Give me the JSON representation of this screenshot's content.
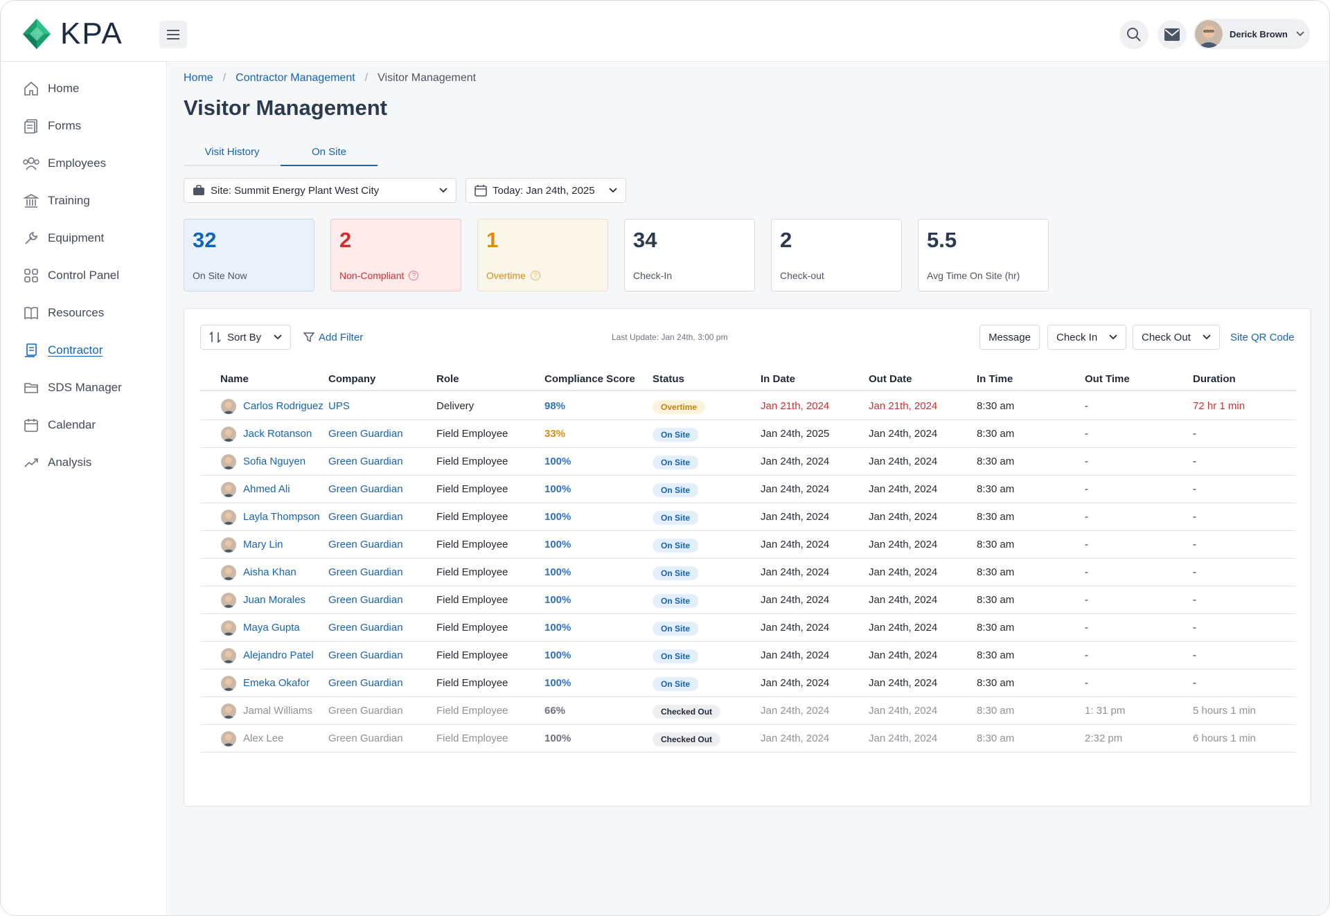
{
  "app": {
    "logo_text": "KPA"
  },
  "user": {
    "name": "Derick Brown"
  },
  "colors": {
    "accent": "#1464b4",
    "danger": "#d12f2f",
    "warning": "#e08a0b",
    "logo_green": "#19a06b"
  },
  "sidebar": {
    "items": [
      {
        "label": "Home",
        "icon": "home-icon"
      },
      {
        "label": "Forms",
        "icon": "forms-icon"
      },
      {
        "label": "Employees",
        "icon": "employees-icon"
      },
      {
        "label": "Training",
        "icon": "training-icon"
      },
      {
        "label": "Equipment",
        "icon": "wrench-icon"
      },
      {
        "label": "Control Panel",
        "icon": "grid-icon"
      },
      {
        "label": "Resources",
        "icon": "book-icon"
      },
      {
        "label": "Contractor",
        "icon": "contractor-icon",
        "active": true
      },
      {
        "label": "SDS Manager",
        "icon": "folder-icon"
      },
      {
        "label": "Calendar",
        "icon": "calendar-icon"
      },
      {
        "label": "Analysis",
        "icon": "trend-icon"
      }
    ]
  },
  "breadcrumb": {
    "home": "Home",
    "parent": "Contractor Management",
    "current": "Visitor Management",
    "sep": "/"
  },
  "page": {
    "title": "Visitor Management"
  },
  "tabs": [
    {
      "label": "Visit History"
    },
    {
      "label": "On Site",
      "active": true
    }
  ],
  "filters": {
    "site": "Site: Summit Energy Plant West City",
    "date": "Today: Jan 24th, 2025"
  },
  "stats": [
    {
      "value": "32",
      "label": "On Site Now"
    },
    {
      "value": "2",
      "label": "Non-Compliant"
    },
    {
      "value": "1",
      "label": "Overtime"
    },
    {
      "value": "34",
      "label": "Check-In"
    },
    {
      "value": "2",
      "label": "Check-out"
    },
    {
      "value": "5.5",
      "label": "Avg Time On Site (hr)"
    }
  ],
  "help_glyph": "?",
  "toolbar": {
    "sort_label": "Sort By",
    "filter_label": "Add Filter",
    "last_update": "Last Update: Jan 24th, 3:00 pm",
    "message_label": "Message",
    "checkin_label": "Check In",
    "checkout_label": "Check Out",
    "qr_label": "Site QR Code"
  },
  "table": {
    "columns": [
      "Name",
      "Company",
      "Role",
      "Compliance Score",
      "Status",
      "In Date",
      "Out Date",
      "In Time",
      "Out Time",
      "Duration"
    ],
    "rows": [
      [
        "Carlos Rodriguez",
        "UPS",
        "Delivery",
        "98%",
        "Overtime",
        "Jan 21th, 2024",
        "Jan 21th, 2024",
        "8:30 am",
        "-",
        "72 hr 1 min"
      ],
      [
        "Jack Rotanson",
        "Green Guardian",
        "Field Employee",
        "33%",
        "On Site",
        "Jan 24th, 2025",
        "Jan 24th, 2024",
        "8:30 am",
        "-",
        "-"
      ],
      [
        "Sofia Nguyen",
        "Green Guardian",
        "Field Employee",
        "100%",
        "On Site",
        "Jan 24th, 2024",
        "Jan 24th, 2024",
        "8:30 am",
        "-",
        "-"
      ],
      [
        "Ahmed Ali",
        "Green Guardian",
        "Field Employee",
        "100%",
        "On Site",
        "Jan 24th, 2024",
        "Jan 24th, 2024",
        "8:30 am",
        "-",
        "-"
      ],
      [
        "Layla Thompson",
        "Green Guardian",
        "Field Employee",
        "100%",
        "On Site",
        "Jan 24th, 2024",
        "Jan 24th, 2024",
        "8:30 am",
        "-",
        "-"
      ],
      [
        "Mary Lin",
        "Green Guardian",
        "Field Employee",
        "100%",
        "On Site",
        "Jan 24th, 2024",
        "Jan 24th, 2024",
        "8:30 am",
        "-",
        "-"
      ],
      [
        "Aisha Khan",
        "Green Guardian",
        "Field Employee",
        "100%",
        "On Site",
        "Jan 24th, 2024",
        "Jan 24th, 2024",
        "8:30 am",
        "-",
        "-"
      ],
      [
        "Juan Morales",
        "Green Guardian",
        "Field Employee",
        "100%",
        "On Site",
        "Jan 24th, 2024",
        "Jan 24th, 2024",
        "8:30 am",
        "-",
        "-"
      ],
      [
        "Maya Gupta",
        "Green Guardian",
        "Field Employee",
        "100%",
        "On Site",
        "Jan 24th, 2024",
        "Jan 24th, 2024",
        "8:30 am",
        "-",
        "-"
      ],
      [
        "Alejandro Patel",
        "Green Guardian",
        "Field Employee",
        "100%",
        "On Site",
        "Jan 24th, 2024",
        "Jan 24th, 2024",
        "8:30 am",
        "-",
        "-"
      ],
      [
        "Emeka Okafor",
        "Green Guardian",
        "Field Employee",
        "100%",
        "On Site",
        "Jan 24th, 2024",
        "Jan 24th, 2024",
        "8:30 am",
        "-",
        "-"
      ],
      [
        "Jamal Williams",
        "Green Guardian",
        "Field Employee",
        "66%",
        "Checked Out",
        "Jan 24th, 2024",
        "Jan 24th, 2024",
        "8:30 am",
        "1: 31 pm",
        "5 hours 1 min"
      ],
      [
        "Alex Lee",
        "Green Guardian",
        "Field Employee",
        "100%",
        "Checked Out",
        "Jan 24th, 2024",
        "Jan 24th, 2024",
        "8:30 am",
        "2:32 pm",
        "6 hours 1 min"
      ]
    ]
  }
}
